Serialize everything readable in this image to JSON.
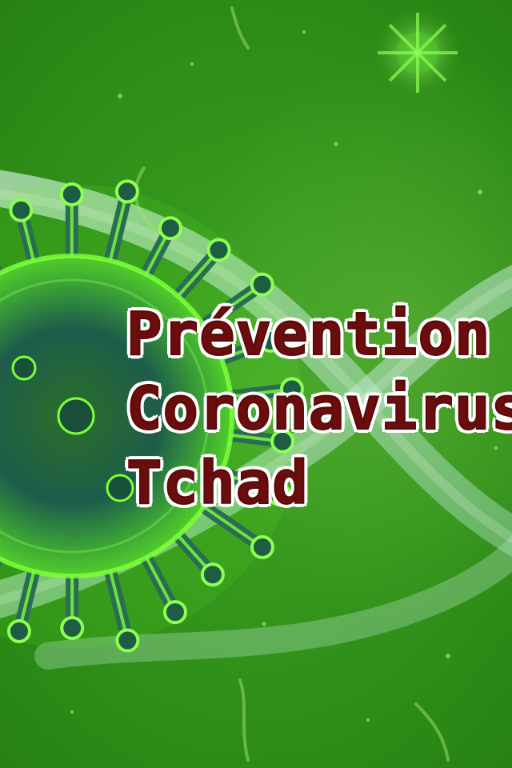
{
  "poster": {
    "headline_line_1": "Prévention",
    "headline_line_2": "Coronavirus",
    "headline_line_3": "Tchad"
  },
  "colors": {
    "background": "#2e8f1a",
    "virus_glow": "#7dff3a",
    "virus_core": "#1d5c4a",
    "dna_strand": "#bfe6d0",
    "headline_text": "#6a0d0d",
    "headline_outline": "#ffffff"
  },
  "illustration": {
    "subject": "coronavirus-particle",
    "secondary": "dna-double-helix"
  }
}
